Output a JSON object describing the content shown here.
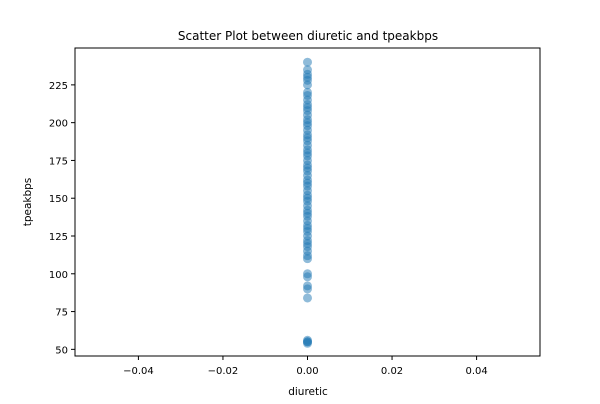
{
  "colors": {
    "point": "#1f77b4",
    "axes": "#000000",
    "background": "#ffffff"
  },
  "chart_data": {
    "type": "scatter",
    "title": "Scatter Plot between diuretic and tpeakbps",
    "xlabel": "diuretic",
    "ylabel": "tpeakbps",
    "xlim": [
      -0.055,
      0.055
    ],
    "ylim": [
      45.6,
      249.4
    ],
    "xticks": [
      -0.04,
      -0.02,
      0.0,
      0.02,
      0.04
    ],
    "xtick_labels": [
      "−0.04",
      "−0.02",
      "0.00",
      "0.02",
      "0.04"
    ],
    "yticks": [
      50,
      75,
      100,
      125,
      150,
      175,
      200,
      225
    ],
    "ytick_labels": [
      "50",
      "75",
      "100",
      "125",
      "150",
      "175",
      "200",
      "225"
    ],
    "grid": false,
    "legend": false,
    "marker_alpha": 0.5,
    "points": [
      {
        "x": 0,
        "y": 54
      },
      {
        "x": 0,
        "y": 55
      },
      {
        "x": 0,
        "y": 55
      },
      {
        "x": 0,
        "y": 56
      },
      {
        "x": 0,
        "y": 84
      },
      {
        "x": 0,
        "y": 90
      },
      {
        "x": 0,
        "y": 92
      },
      {
        "x": 0,
        "y": 98
      },
      {
        "x": 0,
        "y": 100
      },
      {
        "x": 0,
        "y": 110
      },
      {
        "x": 0,
        "y": 112
      },
      {
        "x": 0,
        "y": 115
      },
      {
        "x": 0,
        "y": 118
      },
      {
        "x": 0,
        "y": 120
      },
      {
        "x": 0,
        "y": 122
      },
      {
        "x": 0,
        "y": 125
      },
      {
        "x": 0,
        "y": 128
      },
      {
        "x": 0,
        "y": 130
      },
      {
        "x": 0,
        "y": 132
      },
      {
        "x": 0,
        "y": 135
      },
      {
        "x": 0,
        "y": 138
      },
      {
        "x": 0,
        "y": 140
      },
      {
        "x": 0,
        "y": 142
      },
      {
        "x": 0,
        "y": 145
      },
      {
        "x": 0,
        "y": 148
      },
      {
        "x": 0,
        "y": 150
      },
      {
        "x": 0,
        "y": 152
      },
      {
        "x": 0,
        "y": 155
      },
      {
        "x": 0,
        "y": 158
      },
      {
        "x": 0,
        "y": 160
      },
      {
        "x": 0,
        "y": 162
      },
      {
        "x": 0,
        "y": 165
      },
      {
        "x": 0,
        "y": 168
      },
      {
        "x": 0,
        "y": 170
      },
      {
        "x": 0,
        "y": 172
      },
      {
        "x": 0,
        "y": 175
      },
      {
        "x": 0,
        "y": 178
      },
      {
        "x": 0,
        "y": 180
      },
      {
        "x": 0,
        "y": 182
      },
      {
        "x": 0,
        "y": 185
      },
      {
        "x": 0,
        "y": 188
      },
      {
        "x": 0,
        "y": 190
      },
      {
        "x": 0,
        "y": 192
      },
      {
        "x": 0,
        "y": 195
      },
      {
        "x": 0,
        "y": 198
      },
      {
        "x": 0,
        "y": 200
      },
      {
        "x": 0,
        "y": 202
      },
      {
        "x": 0,
        "y": 205
      },
      {
        "x": 0,
        "y": 208
      },
      {
        "x": 0,
        "y": 210
      },
      {
        "x": 0,
        "y": 212
      },
      {
        "x": 0,
        "y": 215
      },
      {
        "x": 0,
        "y": 218
      },
      {
        "x": 0,
        "y": 220
      },
      {
        "x": 0,
        "y": 225
      },
      {
        "x": 0,
        "y": 228
      },
      {
        "x": 0,
        "y": 230
      },
      {
        "x": 0,
        "y": 232
      },
      {
        "x": 0,
        "y": 235
      },
      {
        "x": 0,
        "y": 240
      }
    ]
  }
}
